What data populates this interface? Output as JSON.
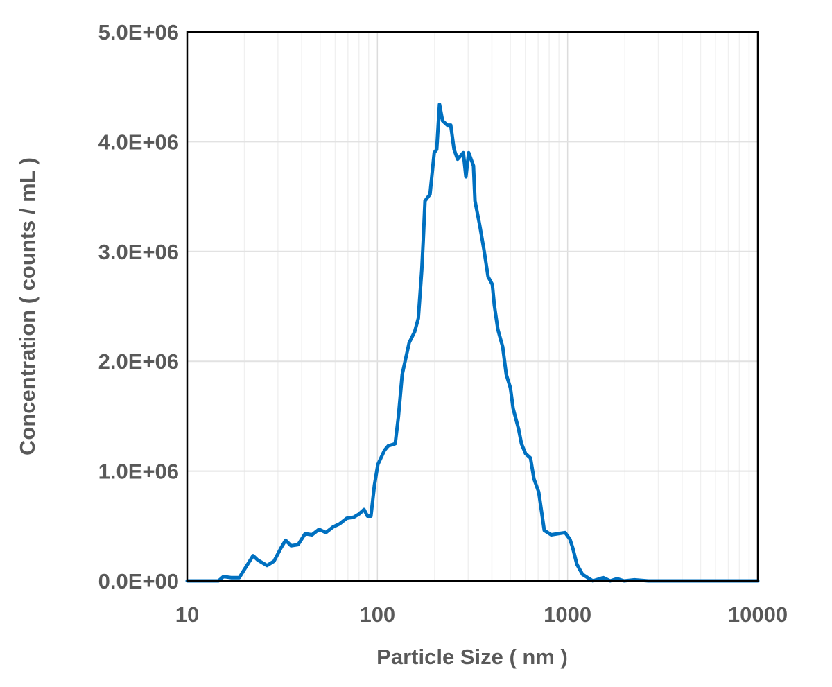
{
  "chart_data": {
    "type": "line",
    "title": "",
    "xlabel": "Particle Size ( nm )",
    "ylabel": "Concentration ( counts / mL )",
    "xscale": "log",
    "xlim": [
      10,
      10000
    ],
    "ylim": [
      0,
      5000000
    ],
    "x_ticks": [
      10,
      100,
      1000,
      10000
    ],
    "x_tick_labels": [
      "10",
      "100",
      "1000",
      "10000"
    ],
    "y_ticks": [
      0,
      1000000,
      2000000,
      3000000,
      4000000,
      5000000
    ],
    "y_tick_labels": [
      "0.0E+00",
      "1.0E+06",
      "2.0E+06",
      "3.0E+06",
      "4.0E+06",
      "5.0E+06"
    ],
    "grid": true,
    "legend": "none",
    "series": [
      {
        "name": "Concentration",
        "color": "#0070C0",
        "x": [
          10,
          14.6,
          15.5,
          17.0,
          18.8,
          19.9,
          22.2,
          23.5,
          26.3,
          28.6,
          31.1,
          32.9,
          35.2,
          38.3,
          41.7,
          45.3,
          49.3,
          53.6,
          58.3,
          63.4,
          68.9,
          75.0,
          80.2,
          85.1,
          88.7,
          92.5,
          96.4,
          100.6,
          109,
          114,
          124,
          129,
          135,
          141,
          147,
          157,
          164,
          171,
          174,
          178,
          189,
          199,
          205,
          212,
          220,
          233,
          243,
          253,
          264,
          283,
          292,
          302,
          320,
          326,
          345,
          363,
          382,
          402,
          412,
          430,
          456,
          476,
          500,
          517,
          553,
          572,
          601,
          638,
          665,
          705,
          754,
          820,
          891,
          970,
          1028,
          1064,
          1119,
          1197,
          1301,
          1358,
          1540,
          1674,
          1820,
          1982,
          2246,
          2656,
          10000
        ],
        "y": [
          0,
          0,
          40000,
          30000,
          30000,
          100000,
          230000,
          190000,
          140000,
          180000,
          300000,
          370000,
          320000,
          330000,
          430000,
          420000,
          470000,
          440000,
          490000,
          520000,
          570000,
          580000,
          610000,
          650000,
          590000,
          590000,
          870000,
          1060000,
          1190000,
          1230000,
          1250000,
          1500000,
          1880000,
          2030000,
          2170000,
          2270000,
          2390000,
          2830000,
          3080000,
          3460000,
          3520000,
          3900000,
          3930000,
          4340000,
          4190000,
          4150000,
          4150000,
          3930000,
          3840000,
          3900000,
          3680000,
          3900000,
          3780000,
          3460000,
          3240000,
          3020000,
          2770000,
          2700000,
          2510000,
          2290000,
          2130000,
          1880000,
          1760000,
          1570000,
          1380000,
          1250000,
          1160000,
          1120000,
          930000,
          810000,
          460000,
          420000,
          430000,
          440000,
          380000,
          300000,
          150000,
          60000,
          20000,
          0,
          30000,
          0,
          20000,
          0,
          10000,
          0,
          0
        ]
      }
    ]
  }
}
